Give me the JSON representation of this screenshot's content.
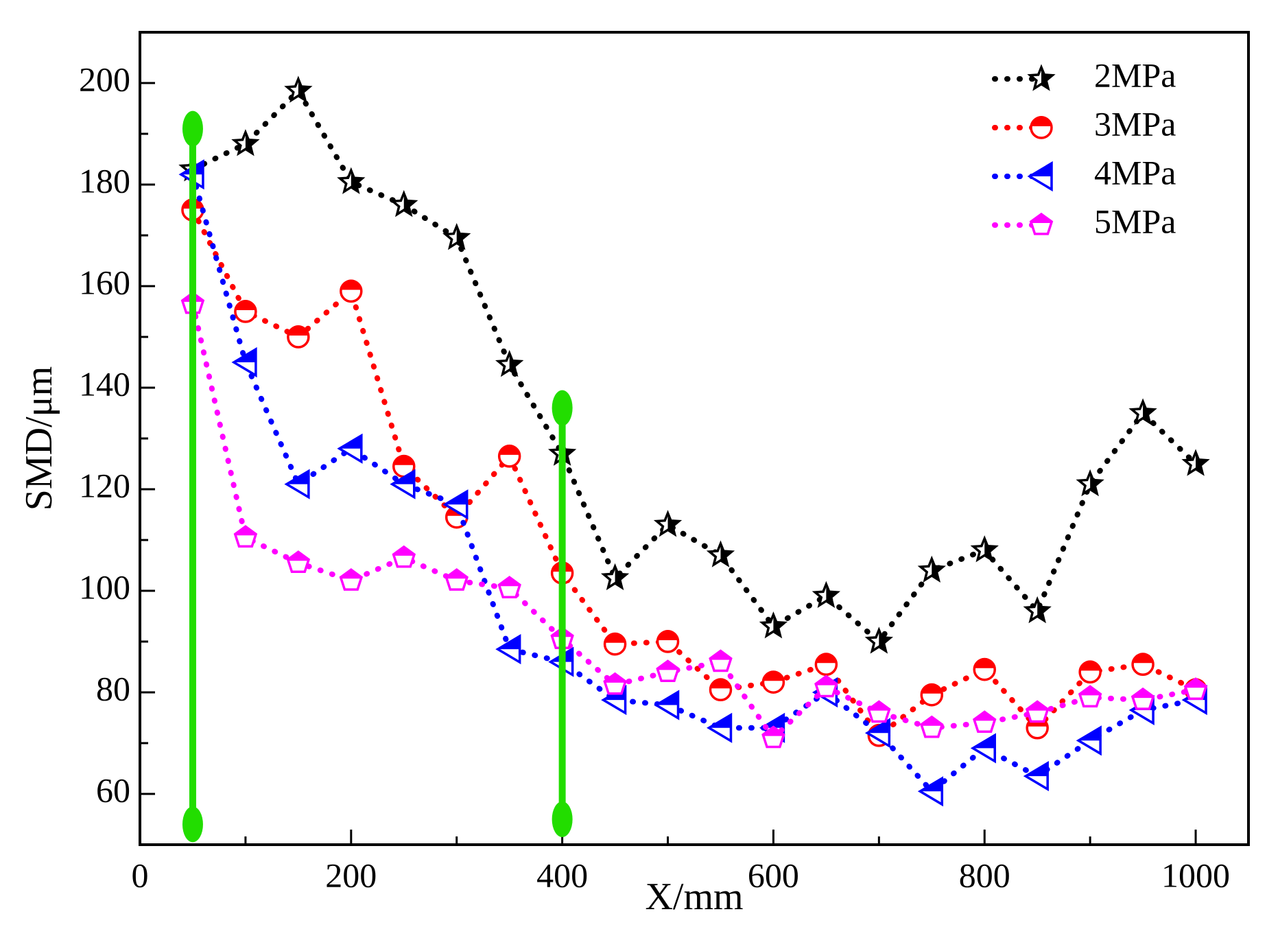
{
  "chart_data": {
    "type": "line",
    "x_label": "X/mm",
    "y_label": "SMD/μm",
    "x": [
      50,
      100,
      150,
      200,
      250,
      300,
      350,
      400,
      450,
      500,
      550,
      600,
      650,
      700,
      750,
      800,
      850,
      900,
      950,
      1000
    ],
    "series": [
      {
        "name": "2MPa",
        "color": "#000000",
        "marker": "star",
        "values": [
          183,
          188,
          198.5,
          180.5,
          176,
          169.5,
          144.5,
          127,
          102.5,
          113,
          107,
          93,
          99,
          90,
          104,
          108,
          96,
          121,
          135,
          125
        ]
      },
      {
        "name": "3MPa",
        "color": "#ff0000",
        "marker": "circle",
        "values": [
          175,
          155,
          150,
          159,
          124.5,
          114.5,
          126.5,
          103.5,
          89.5,
          90,
          80.5,
          82,
          85.5,
          71.5,
          79.5,
          84.5,
          73,
          84,
          85.5,
          80.5
        ]
      },
      {
        "name": "4MPa",
        "color": "#0000ff",
        "marker": "triangle",
        "values": [
          182,
          145,
          121,
          128,
          121,
          117,
          88.5,
          86,
          78.5,
          77.5,
          73,
          73,
          80,
          72,
          60.5,
          69,
          63.5,
          70.5,
          76.5,
          78.5
        ]
      },
      {
        "name": "5MPa",
        "color": "#ff00ff",
        "marker": "pentagon",
        "values": [
          156.5,
          110.5,
          105.5,
          102,
          106.5,
          102,
          100.5,
          90.5,
          81.5,
          84,
          86,
          71,
          81,
          76,
          73,
          74,
          76,
          79,
          78.5,
          80.5
        ]
      }
    ],
    "xlim": [
      0,
      1050
    ],
    "ylim": [
      50,
      210
    ],
    "xticks": [
      0,
      200,
      400,
      600,
      800,
      1000
    ],
    "xminorticks": [
      100,
      300,
      500,
      700,
      900
    ],
    "yticks": [
      60,
      80,
      100,
      120,
      140,
      160,
      180,
      200
    ],
    "yminorticks": [
      50,
      70,
      90,
      110,
      130,
      150,
      170,
      190,
      210
    ],
    "legend": "upper right",
    "annotations": [
      {
        "color": "#22dd00",
        "x": 50,
        "y": [
          54,
          191
        ]
      },
      {
        "color": "#22dd00",
        "x": 400,
        "y": [
          55,
          136
        ]
      }
    ]
  }
}
